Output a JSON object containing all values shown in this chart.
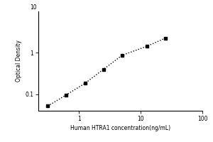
{
  "x_values": [
    0.313,
    0.625,
    1.25,
    2.5,
    5.0,
    12.5,
    25.0
  ],
  "y_values": [
    0.052,
    0.097,
    0.183,
    0.4,
    0.87,
    1.43,
    2.25
  ],
  "xlim": [
    0.22,
    100
  ],
  "ylim": [
    0.04,
    10
  ],
  "xlabel": "Human HTRA1 concentration(ng/mL)",
  "ylabel": "Optical Density",
  "marker": "s",
  "marker_color": "black",
  "marker_size": 3.5,
  "line_style": "dotted",
  "line_color": "black",
  "line_width": 1.0,
  "top_y_label": "10",
  "background_color": "#ffffff",
  "font_size_axis": 5.5,
  "font_size_ticks": 5.5
}
